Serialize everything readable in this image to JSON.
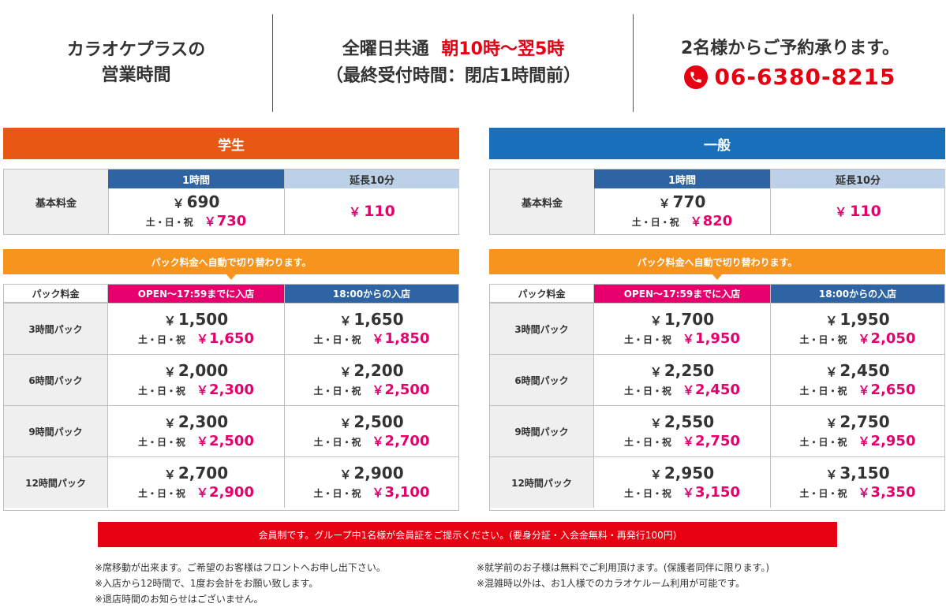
{
  "header": {
    "hours_title_line1": "カラオケプラスの",
    "hours_title_line2": "営業時間",
    "all_days_label": "全曜日共通",
    "hours_value": "朝10時～翌5時",
    "last_entry": "（最終受付時間：閉店1時間前）",
    "reservation_text": "2名様からご予約承ります。",
    "phone": "06-6380-8215",
    "phone_icon": "phone-icon"
  },
  "sections": [
    {
      "title": "学生",
      "color": "#e85814",
      "basic_label": "基本料金",
      "hour_header": "1時間",
      "ext_header": "延長10分",
      "hour_price": "690",
      "hour_weekend_label": "土・日・祝",
      "hour_weekend_price": "730",
      "ext_price": "110",
      "auto_switch": "パック料金へ自動で切り替わります。",
      "pack_label": "パック料金",
      "col_open": "OPEN～17:59までに入店",
      "col_18": "18:00からの入店",
      "packs": [
        {
          "name": "3時間パック",
          "open": "1,500",
          "open_we": "1,650",
          "late": "1,650",
          "late_we": "1,850"
        },
        {
          "name": "6時間パック",
          "open": "2,000",
          "open_we": "2,300",
          "late": "2,200",
          "late_we": "2,500"
        },
        {
          "name": "9時間パック",
          "open": "2,300",
          "open_we": "2,500",
          "late": "2,500",
          "late_we": "2,700"
        },
        {
          "name": "12時間パック",
          "open": "2,700",
          "open_we": "2,900",
          "late": "2,900",
          "late_we": "3,100"
        }
      ]
    },
    {
      "title": "一般",
      "color": "#1a6fba",
      "basic_label": "基本料金",
      "hour_header": "1時間",
      "ext_header": "延長10分",
      "hour_price": "770",
      "hour_weekend_label": "土・日・祝",
      "hour_weekend_price": "820",
      "ext_price": "110",
      "auto_switch": "パック料金へ自動で切り替わります。",
      "pack_label": "パック料金",
      "col_open": "OPEN～17:59までに入店",
      "col_18": "18:00からの入店",
      "packs": [
        {
          "name": "3時間パック",
          "open": "1,700",
          "open_we": "1,950",
          "late": "1,950",
          "late_we": "2,050"
        },
        {
          "name": "6時間パック",
          "open": "2,250",
          "open_we": "2,450",
          "late": "2,450",
          "late_we": "2,650"
        },
        {
          "name": "9時間パック",
          "open": "2,550",
          "open_we": "2,750",
          "late": "2,750",
          "late_we": "2,950"
        },
        {
          "name": "12時間パック",
          "open": "2,950",
          "open_we": "3,150",
          "late": "3,150",
          "late_we": "3,350"
        }
      ]
    }
  ],
  "yen": "￥",
  "weekend_label": "土・日・祝",
  "member_notice": "会員制です。グループ中1名様が会員証をご提示ください。(要身分証・入会金無料・再発行100円)",
  "notes_left": [
    "※席移動が出来ます。ご希望のお客様はフロントへお申し出下さい。",
    "※入店から12時間で、1度お会計をお願い致します。",
    "※退店時間のお知らせはございません。"
  ],
  "notes_right": [
    "※就学前のお子様は無料でご利用頂けます。(保護者同伴に限ります。)",
    "※混雑時以外は、お1人様でのカラオケルーム利用が可能です。"
  ]
}
